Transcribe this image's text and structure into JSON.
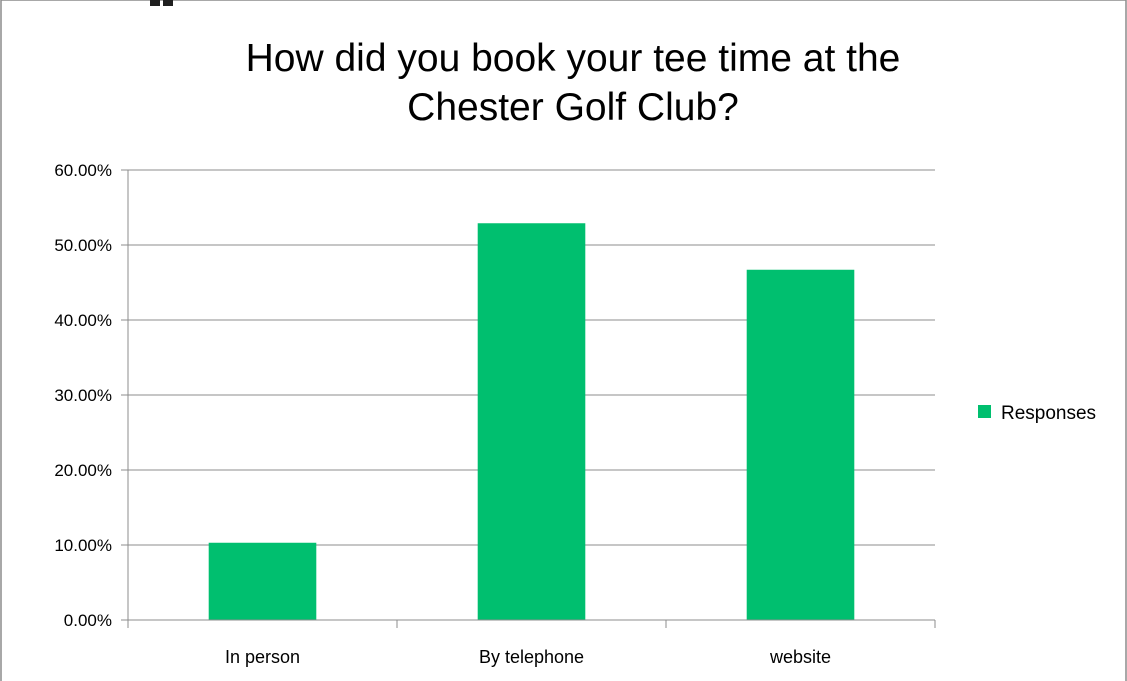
{
  "chart_data": {
    "type": "bar",
    "title_lines": [
      "How did you book your tee time at the",
      "Chester Golf Club?"
    ],
    "xlabel": "",
    "ylabel": "",
    "categories": [
      "In person",
      "By telephone",
      "website"
    ],
    "series": [
      {
        "name": "Responses",
        "values": [
          10.3,
          52.9,
          46.7
        ],
        "color": "#00BF6F"
      }
    ],
    "ylim": [
      0,
      60
    ],
    "yticks": [
      0,
      10,
      20,
      30,
      40,
      50,
      60
    ],
    "ytick_labels": [
      "0.00%",
      "10.00%",
      "20.00%",
      "30.00%",
      "40.00%",
      "50.00%",
      "60.00%"
    ],
    "grid": true,
    "legend_position": "right"
  }
}
